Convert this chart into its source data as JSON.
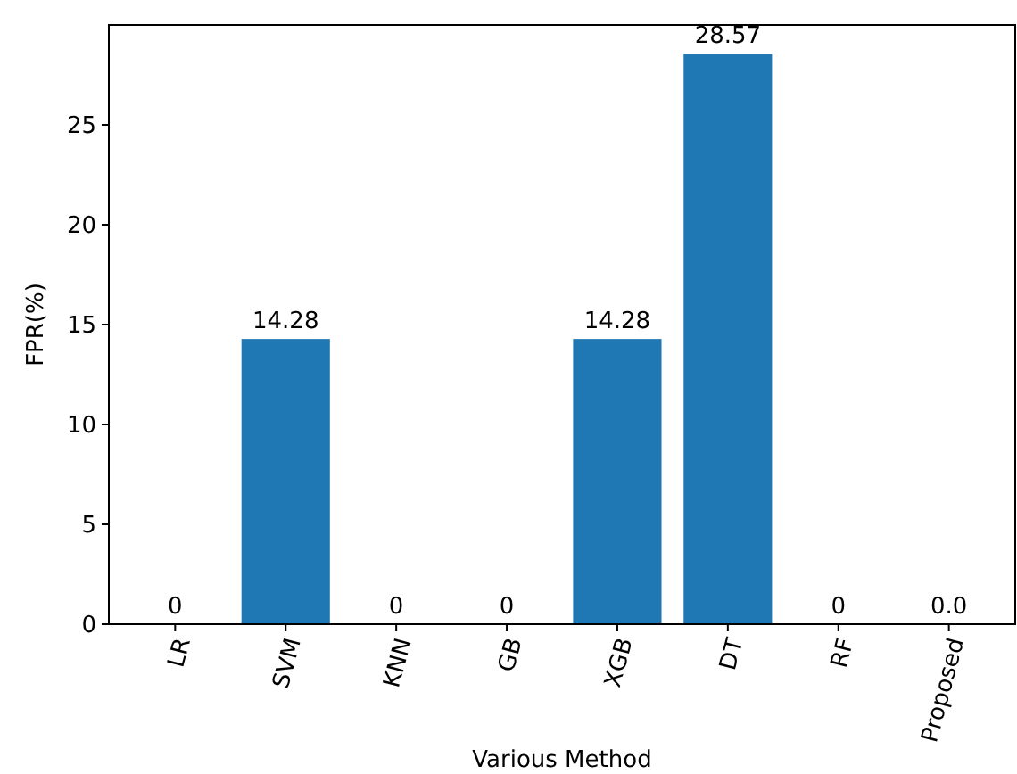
{
  "chart_data": {
    "type": "bar",
    "xlabel": "Various Method",
    "ylabel": "FPR(%)",
    "categories": [
      "LR",
      "SVM",
      "KNN",
      "GB",
      "XGB",
      "DT",
      "RF",
      "Proposed"
    ],
    "values": [
      0,
      14.28,
      0,
      0,
      14.28,
      28.57,
      0,
      0
    ],
    "value_labels": [
      "0",
      "14.28",
      "0",
      "0",
      "14.28",
      "28.57",
      "0",
      "0.0"
    ],
    "color": "#1f77b4",
    "ylim": [
      0,
      30
    ],
    "yticks": [
      0,
      5,
      10,
      15,
      20,
      25
    ],
    "grid": false
  }
}
